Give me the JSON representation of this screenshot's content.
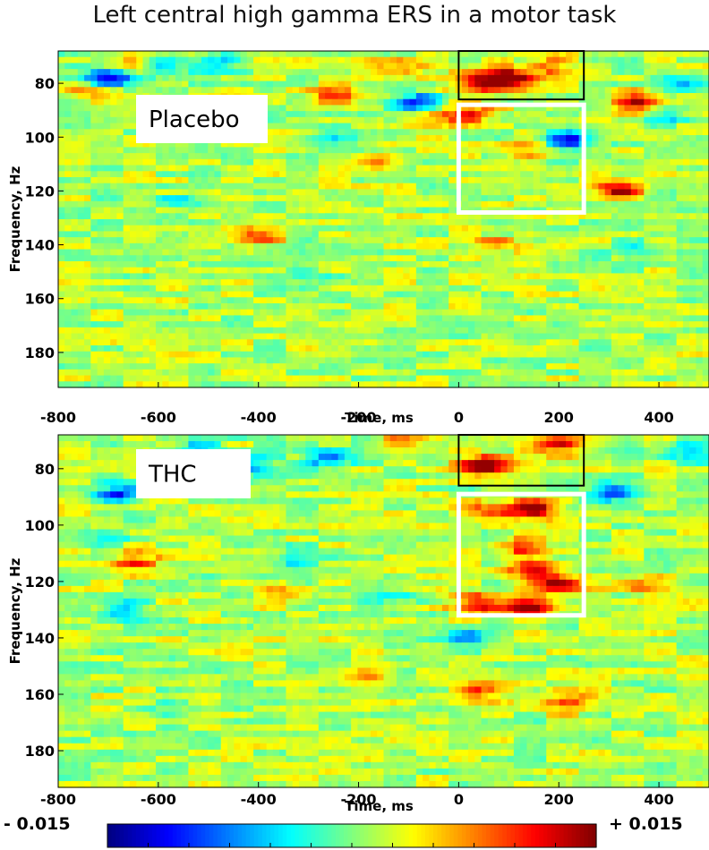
{
  "title": "Left central high gamma  ERS in a motor task",
  "chart_data": [
    {
      "type": "heatmap",
      "condition_label": "Placebo",
      "xlabel": "Time, ms",
      "ylabel": "Frequency, Hz",
      "xlim": [
        -800,
        500
      ],
      "ylim": [
        68,
        193
      ],
      "xticks": [
        -800,
        -600,
        -400,
        -200,
        0,
        200,
        400
      ],
      "yticks": [
        80,
        100,
        120,
        140,
        160,
        180
      ],
      "boxes": [
        {
          "name": "black-box",
          "color": "#000000",
          "x": [
            0,
            250
          ],
          "y": [
            68,
            86
          ]
        },
        {
          "name": "white-box",
          "color": "#ffffff",
          "x": [
            0,
            250
          ],
          "y": [
            88,
            128
          ]
        }
      ],
      "blobs": [
        {
          "t": 100,
          "f": 78,
          "v": 1.0
        },
        {
          "t": 40,
          "f": 80,
          "v": 0.8
        },
        {
          "t": 180,
          "f": 74,
          "v": 0.55
        },
        {
          "t": 20,
          "f": 91,
          "v": 0.75
        },
        {
          "t": -60,
          "f": 95,
          "v": 0.45
        },
        {
          "t": 320,
          "f": 120,
          "v": 0.85
        },
        {
          "t": 360,
          "f": 87,
          "v": 0.8
        },
        {
          "t": 130,
          "f": 105,
          "v": 0.4
        },
        {
          "t": -160,
          "f": 109,
          "v": 0.45
        },
        {
          "t": -400,
          "f": 137,
          "v": 0.55
        },
        {
          "t": 70,
          "f": 140,
          "v": 0.45
        },
        {
          "t": -250,
          "f": 85,
          "v": 0.5
        },
        {
          "t": -660,
          "f": 73,
          "v": 0.45
        },
        {
          "t": -120,
          "f": 74,
          "v": 0.45
        },
        {
          "t": -740,
          "f": 83,
          "v": 0.35
        },
        {
          "t": -700,
          "f": 78,
          "v": -1.0
        },
        {
          "t": -80,
          "f": 87,
          "v": -0.8
        },
        {
          "t": 220,
          "f": 101,
          "v": -0.85
        },
        {
          "t": -600,
          "f": 73,
          "v": -0.6
        },
        {
          "t": -480,
          "f": 72,
          "v": -0.55
        },
        {
          "t": -250,
          "f": 101,
          "v": -0.4
        },
        {
          "t": 440,
          "f": 80,
          "v": -0.45
        },
        {
          "t": 420,
          "f": 92,
          "v": -0.35
        },
        {
          "t": 350,
          "f": 143,
          "v": -0.35
        },
        {
          "t": -560,
          "f": 124,
          "v": -0.3
        },
        {
          "t": -300,
          "f": 154,
          "v": -0.25
        }
      ]
    },
    {
      "type": "heatmap",
      "condition_label": "THC",
      "xlabel": "Time, ms",
      "ylabel": "Frequency, Hz",
      "xlim": [
        -800,
        500
      ],
      "ylim": [
        68,
        193
      ],
      "xticks": [
        -800,
        -600,
        -400,
        -200,
        0,
        200,
        400
      ],
      "yticks": [
        80,
        100,
        120,
        140,
        160,
        180
      ],
      "boxes": [
        {
          "name": "black-box",
          "color": "#000000",
          "x": [
            0,
            250
          ],
          "y": [
            68,
            86
          ]
        },
        {
          "name": "white-box",
          "color": "#ffffff",
          "x": [
            0,
            250
          ],
          "y": [
            89,
            132
          ]
        }
      ],
      "blobs": [
        {
          "t": 50,
          "f": 79,
          "v": 1.0
        },
        {
          "t": 200,
          "f": 71,
          "v": 0.75
        },
        {
          "t": 150,
          "f": 94,
          "v": 0.95
        },
        {
          "t": 150,
          "f": 116,
          "v": 0.95
        },
        {
          "t": 200,
          "f": 121,
          "v": 0.8
        },
        {
          "t": 140,
          "f": 129,
          "v": 1.0
        },
        {
          "t": 40,
          "f": 128,
          "v": 0.8
        },
        {
          "t": 120,
          "f": 108,
          "v": 0.5
        },
        {
          "t": 60,
          "f": 95,
          "v": 0.4
        },
        {
          "t": -650,
          "f": 113,
          "v": 0.55
        },
        {
          "t": 50,
          "f": 159,
          "v": 0.5
        },
        {
          "t": 220,
          "f": 163,
          "v": 0.5
        },
        {
          "t": -180,
          "f": 153,
          "v": 0.4
        },
        {
          "t": -350,
          "f": 125,
          "v": 0.35
        },
        {
          "t": 380,
          "f": 122,
          "v": 0.4
        },
        {
          "t": -120,
          "f": 70,
          "v": 0.35
        },
        {
          "t": -420,
          "f": 79,
          "v": -0.55
        },
        {
          "t": -260,
          "f": 76,
          "v": -0.75
        },
        {
          "t": -520,
          "f": 74,
          "v": -0.5
        },
        {
          "t": -680,
          "f": 89,
          "v": -0.85
        },
        {
          "t": 310,
          "f": 88,
          "v": -0.75
        },
        {
          "t": 470,
          "f": 75,
          "v": -0.6
        },
        {
          "t": -670,
          "f": 130,
          "v": -0.6
        },
        {
          "t": -700,
          "f": 105,
          "v": -0.35
        },
        {
          "t": -330,
          "f": 112,
          "v": -0.35
        },
        {
          "t": 20,
          "f": 140,
          "v": -0.45
        },
        {
          "t": -130,
          "f": 125,
          "v": -0.35
        },
        {
          "t": -590,
          "f": 165,
          "v": -0.25
        }
      ]
    }
  ],
  "colorbar": {
    "min_label": "- 0.015",
    "max_label": "+ 0.015",
    "vmin": -0.015,
    "vmax": 0.015,
    "colormap": "jet"
  }
}
